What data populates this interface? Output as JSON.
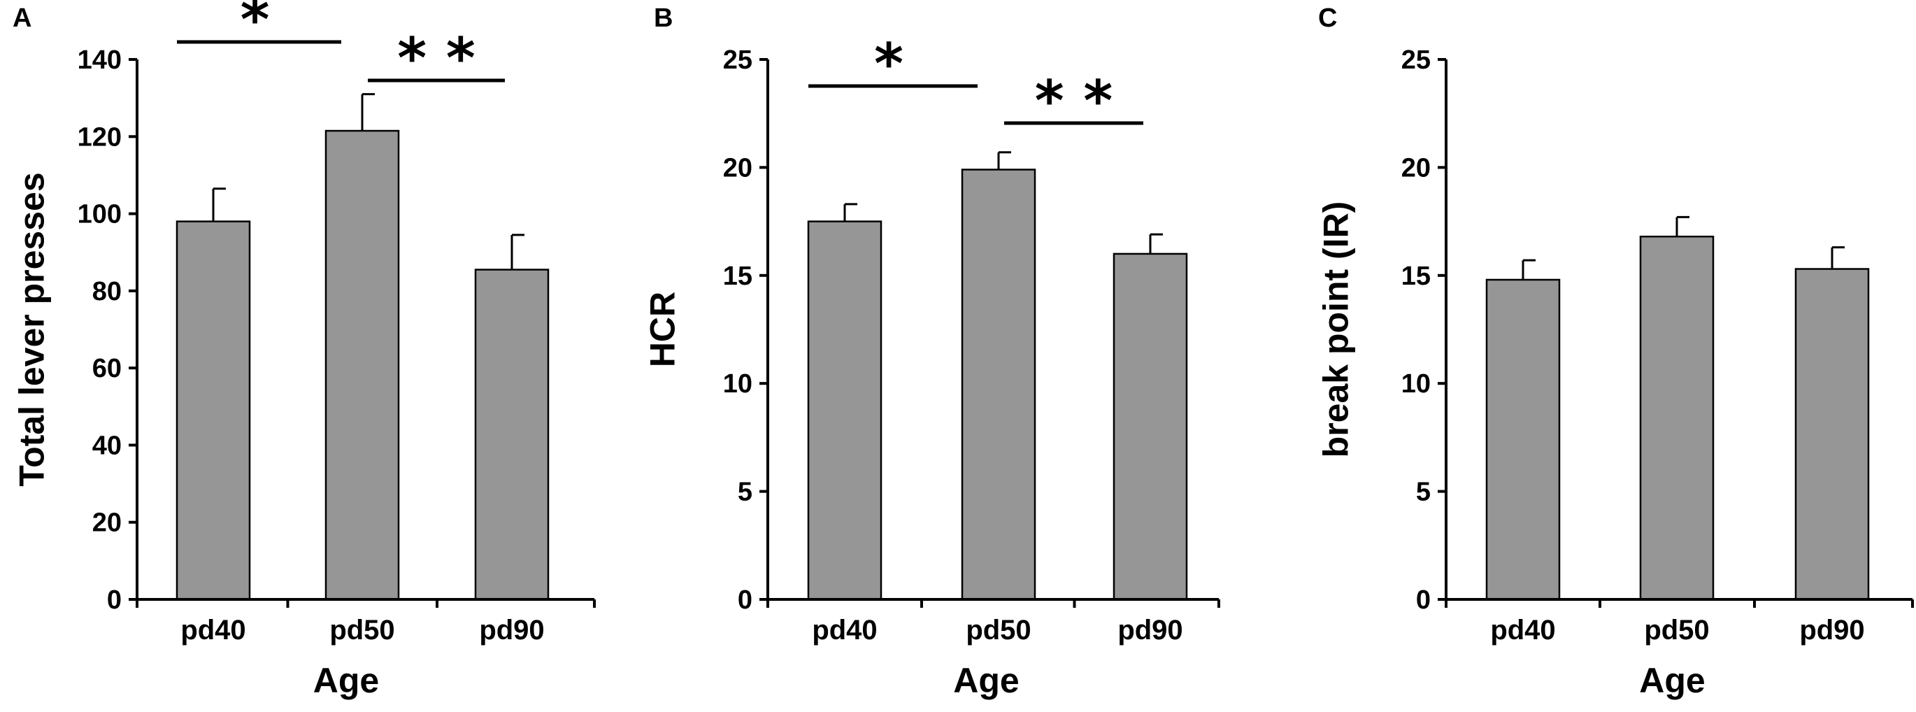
{
  "chart_data": [
    {
      "type": "bar",
      "panel_label": "A",
      "categories": [
        "pd40",
        "pd50",
        "pd90"
      ],
      "values": [
        98,
        121.5,
        85.5
      ],
      "errors": [
        8.5,
        9.5,
        9
      ],
      "xlabel": "Age",
      "ylabel": "Total lever presses",
      "ylim": [
        0,
        140
      ],
      "yticks": [
        0,
        20,
        40,
        60,
        80,
        100,
        120,
        140
      ],
      "significance": [
        {
          "from": 0,
          "to": 1,
          "label": "*"
        },
        {
          "from": 1,
          "to": 2,
          "label": "* *"
        }
      ]
    },
    {
      "type": "bar",
      "panel_label": "B",
      "categories": [
        "pd40",
        "pd50",
        "pd90"
      ],
      "values": [
        17.5,
        19.9,
        16
      ],
      "errors": [
        0.8,
        0.8,
        0.9
      ],
      "xlabel": "Age",
      "ylabel": "HCR",
      "ylim": [
        0,
        25
      ],
      "yticks": [
        0,
        5,
        10,
        15,
        20,
        25
      ],
      "significance": [
        {
          "from": 0,
          "to": 1,
          "label": "*"
        },
        {
          "from": 1,
          "to": 2,
          "label": "* *"
        }
      ]
    },
    {
      "type": "bar",
      "panel_label": "C",
      "categories": [
        "pd40",
        "pd50",
        "pd90"
      ],
      "values": [
        14.8,
        16.8,
        15.3
      ],
      "errors": [
        0.9,
        0.9,
        1.0
      ],
      "xlabel": "Age",
      "ylabel": "break point (IR)",
      "ylim": [
        0,
        25
      ],
      "yticks": [
        0,
        5,
        10,
        15,
        20,
        25
      ],
      "significance": []
    }
  ],
  "colors": {
    "bar_fill": "#969696",
    "bar_stroke": "#000000",
    "axis": "#000000",
    "background": "#ffffff"
  }
}
